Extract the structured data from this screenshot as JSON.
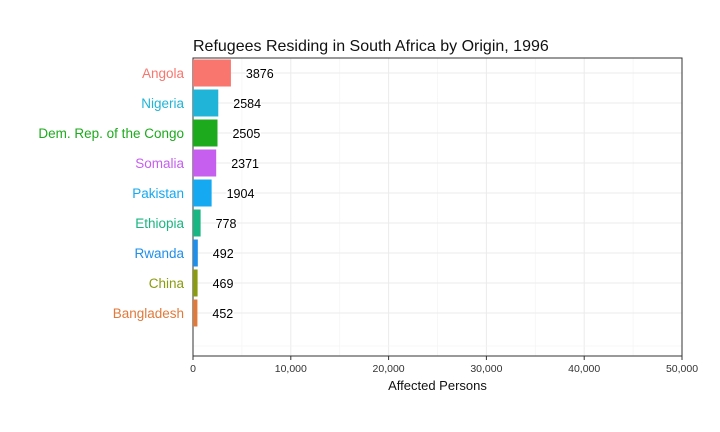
{
  "chart_data": {
    "type": "bar",
    "orientation": "horizontal",
    "title": "Refugees Residing in South Africa by Origin, 1996",
    "xlabel": "Affected Persons",
    "ylabel": "",
    "xlim": [
      0,
      50000
    ],
    "xticks": [
      0,
      10000,
      20000,
      30000,
      40000,
      50000
    ],
    "xtick_labels": [
      "0",
      "10,000",
      "20,000",
      "30,000",
      "40,000",
      "50,000"
    ],
    "grid": true,
    "legend": "none",
    "categories": [
      "Angola",
      "Nigeria",
      "Dem. Rep. of the Congo",
      "Somalia",
      "Pakistan",
      "Ethiopia",
      "Rwanda",
      "China",
      "Bangladesh"
    ],
    "values": [
      3876,
      2584,
      2505,
      2371,
      1904,
      778,
      492,
      469,
      452
    ],
    "value_labels": [
      "3876",
      "2584",
      "2505",
      "2371",
      "1904",
      "778",
      "492",
      "469",
      "452"
    ],
    "colors": [
      "#F8766D",
      "#1FB4D8",
      "#1DAA1D",
      "#C65EF0",
      "#14A9F0",
      "#19B582",
      "#1F8FEA",
      "#8A9B0F",
      "#E07A3B"
    ]
  }
}
